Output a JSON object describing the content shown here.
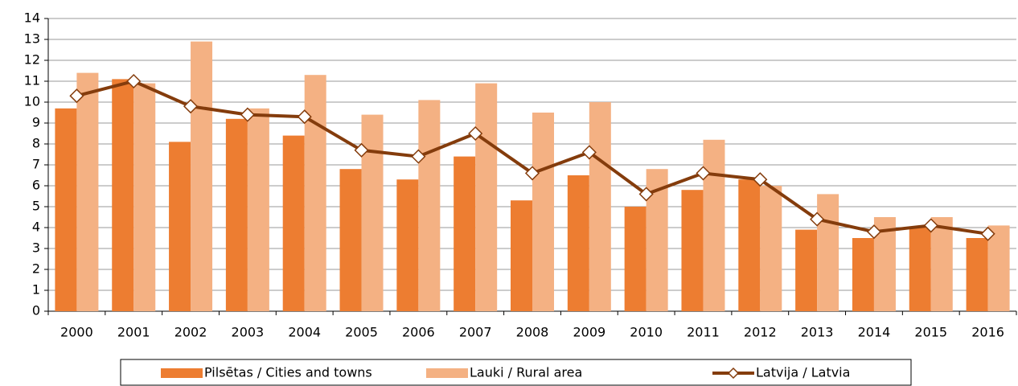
{
  "chart_data": {
    "type": "bar",
    "categories": [
      "2000",
      "2001",
      "2002",
      "2003",
      "2004",
      "2005",
      "2006",
      "2007",
      "2008",
      "2009",
      "2010",
      "2011",
      "2012",
      "2013",
      "2014",
      "2015",
      "2016"
    ],
    "series": [
      {
        "name": "Pilsētas / Cities and towns",
        "type": "bar",
        "color": "#ed7d31",
        "values": [
          9.7,
          11.1,
          8.1,
          9.2,
          8.4,
          6.8,
          6.3,
          7.4,
          5.3,
          6.5,
          5.0,
          5.8,
          6.3,
          3.9,
          3.5,
          4.0,
          3.5
        ]
      },
      {
        "name": "Lauki / Rural area",
        "type": "bar",
        "color": "#f4b183",
        "values": [
          11.4,
          10.9,
          12.9,
          9.7,
          11.3,
          9.4,
          10.1,
          10.9,
          9.5,
          10.0,
          6.8,
          8.2,
          6.0,
          5.6,
          4.5,
          4.5,
          4.1
        ]
      },
      {
        "name": "Latvija / Latvia",
        "type": "line",
        "color": "#843c0c",
        "values": [
          10.3,
          11.0,
          9.8,
          9.4,
          9.3,
          7.7,
          7.4,
          8.5,
          6.6,
          7.6,
          5.6,
          6.6,
          6.3,
          4.4,
          3.8,
          4.1,
          3.7
        ]
      }
    ],
    "ylim": [
      0,
      14
    ],
    "yticks": [
      0,
      1,
      2,
      3,
      4,
      5,
      6,
      7,
      8,
      9,
      10,
      11,
      12,
      13,
      14
    ],
    "grid": true,
    "legend": "bottom"
  }
}
